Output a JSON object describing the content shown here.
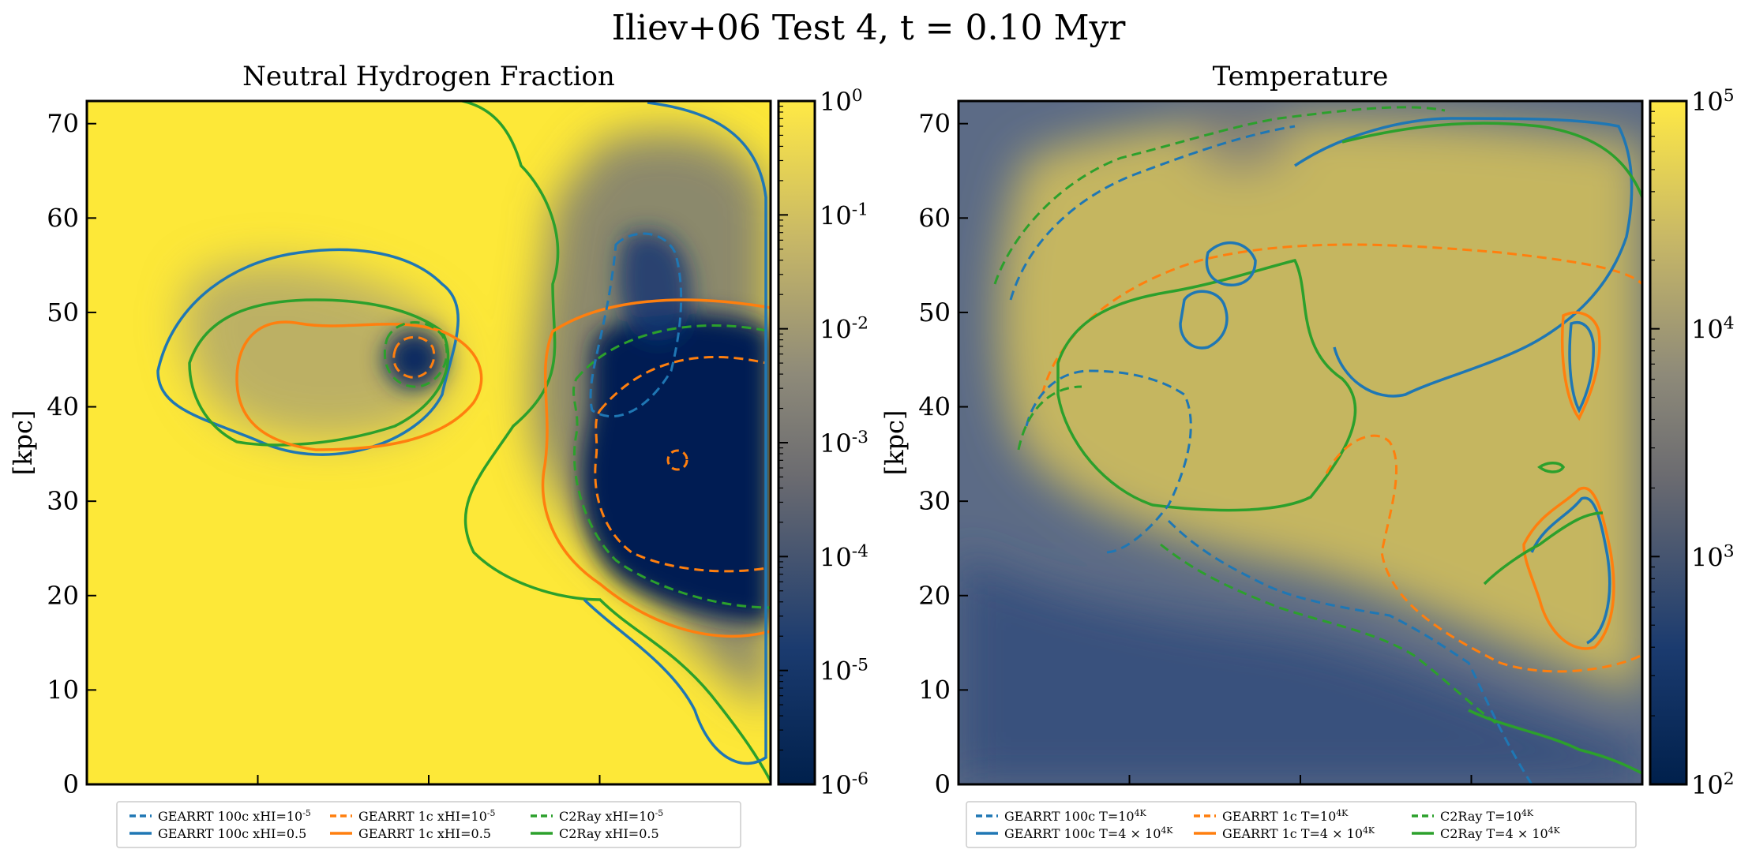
{
  "figure_title": "Iliev+06 Test 4, t = 0.10 Myr",
  "colors": {
    "gearrt_100c": "#1f77b4",
    "gearrt_1c": "#ff7f0e",
    "c2ray": "#2ca02c",
    "cmap_low": "#00204c",
    "cmap_mid": "#7c7b78",
    "cmap_high": "#ffe945"
  },
  "chart_data": [
    {
      "type": "heatmap",
      "title": "Neutral Hydrogen Fraction",
      "ylabel": "[kpc]",
      "ylim": [
        0,
        72.4
      ],
      "yticks": [
        "0",
        "10",
        "20",
        "30",
        "40",
        "50",
        "60",
        "70"
      ],
      "colorbar": {
        "scale": "log",
        "range": [
          1e-06,
          1
        ],
        "labels": [
          "10^0",
          "10^-1",
          "10^-2",
          "10^-3",
          "10^-4",
          "10^-5",
          "10^-6"
        ]
      },
      "legend": {
        "position": "below",
        "entries": [
          {
            "label": "GEARRT 100c xHI=10^-5",
            "color": "#1f77b4",
            "style": "dashed"
          },
          {
            "label": "GEARRT 100c xHI=0.5",
            "color": "#1f77b4",
            "style": "solid"
          },
          {
            "label": "GEARRT 1c xHI=10^-5",
            "color": "#ff7f0e",
            "style": "dashed"
          },
          {
            "label": "GEARRT 1c xHI=0.5",
            "color": "#ff7f0e",
            "style": "solid"
          },
          {
            "label": "C2Ray xHI=10^-5",
            "color": "#2ca02c",
            "style": "dashed"
          },
          {
            "label": "C2Ray xHI=0.5",
            "color": "#2ca02c",
            "style": "solid"
          }
        ]
      }
    },
    {
      "type": "heatmap",
      "title": "Temperature",
      "ylabel": "[kpc]",
      "ylim": [
        0,
        72.4
      ],
      "yticks": [
        "0",
        "10",
        "20",
        "30",
        "40",
        "50",
        "60",
        "70"
      ],
      "colorbar": {
        "scale": "log",
        "range": [
          100,
          100000
        ],
        "labels": [
          "10^5",
          "10^4",
          "10^3",
          "10^2"
        ]
      },
      "legend": {
        "position": "below",
        "entries": [
          {
            "label": "GEARRT 100c T=10^4K",
            "color": "#1f77b4",
            "style": "dashed"
          },
          {
            "label": "GEARRT 100c T=4 × 10^4K",
            "color": "#1f77b4",
            "style": "solid"
          },
          {
            "label": "GEARRT 1c T=10^4K",
            "color": "#ff7f0e",
            "style": "dashed"
          },
          {
            "label": "GEARRT 1c T=4 × 10^4K",
            "color": "#ff7f0e",
            "style": "solid"
          },
          {
            "label": "C2Ray T=10^4K",
            "color": "#2ca02c",
            "style": "dashed"
          },
          {
            "label": "C2Ray T=4 × 10^4K",
            "color": "#2ca02c",
            "style": "solid"
          }
        ]
      }
    }
  ]
}
